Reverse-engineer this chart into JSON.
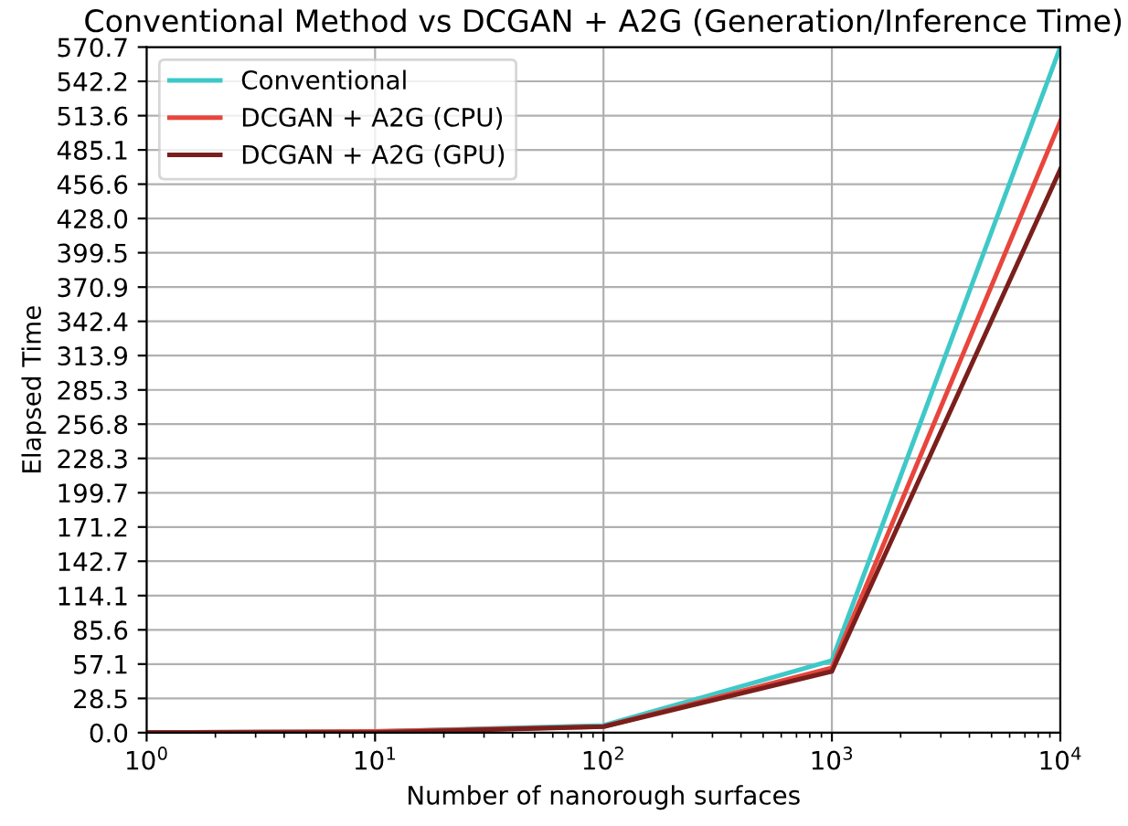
{
  "chart_data": {
    "type": "line",
    "title": "Conventional Method vs DCGAN + A2G (Generation/Inference Time)",
    "xlabel": "Number of nanorough surfaces",
    "ylabel": "Elapsed Time",
    "x": [
      1,
      10,
      100,
      1000,
      10000
    ],
    "series": [
      {
        "name": "Conventional",
        "color": "#3fc8c8",
        "values": [
          0,
          1,
          6,
          60,
          570.7
        ]
      },
      {
        "name": "DCGAN + A2G (CPU)",
        "color": "#e8453c",
        "values": [
          0,
          1,
          5,
          54,
          509
        ]
      },
      {
        "name": "DCGAN + A2G (GPU)",
        "color": "#7b1f1c",
        "values": [
          0,
          0,
          5,
          51,
          469
        ]
      }
    ],
    "log": "x",
    "xlim": [
      1,
      10000
    ],
    "xticks": [
      {
        "value": 1,
        "label": "10$^{0}$"
      },
      {
        "value": 10,
        "label": "10$^{1}$"
      },
      {
        "value": 100,
        "label": "10$^{2}$"
      },
      {
        "value": 1000,
        "label": "10$^{3}$"
      },
      {
        "value": 10000,
        "label": "10$^{4}$"
      }
    ],
    "ylim": [
      0,
      570.7
    ],
    "yticks": [
      {
        "value": 0,
        "label": "0.0"
      },
      28.5,
      57.1,
      85.6,
      114.1,
      142.7,
      171.2,
      199.7,
      228.3,
      256.8,
      285.3,
      313.9,
      342.4,
      370.9,
      399.5,
      {
        "value": 428,
        "label": "428.0"
      },
      456.6,
      485.1,
      513.6,
      542.2,
      570.7
    ],
    "grid": true,
    "legend": "top left",
    "marker": "none",
    "line_style": "solid"
  }
}
